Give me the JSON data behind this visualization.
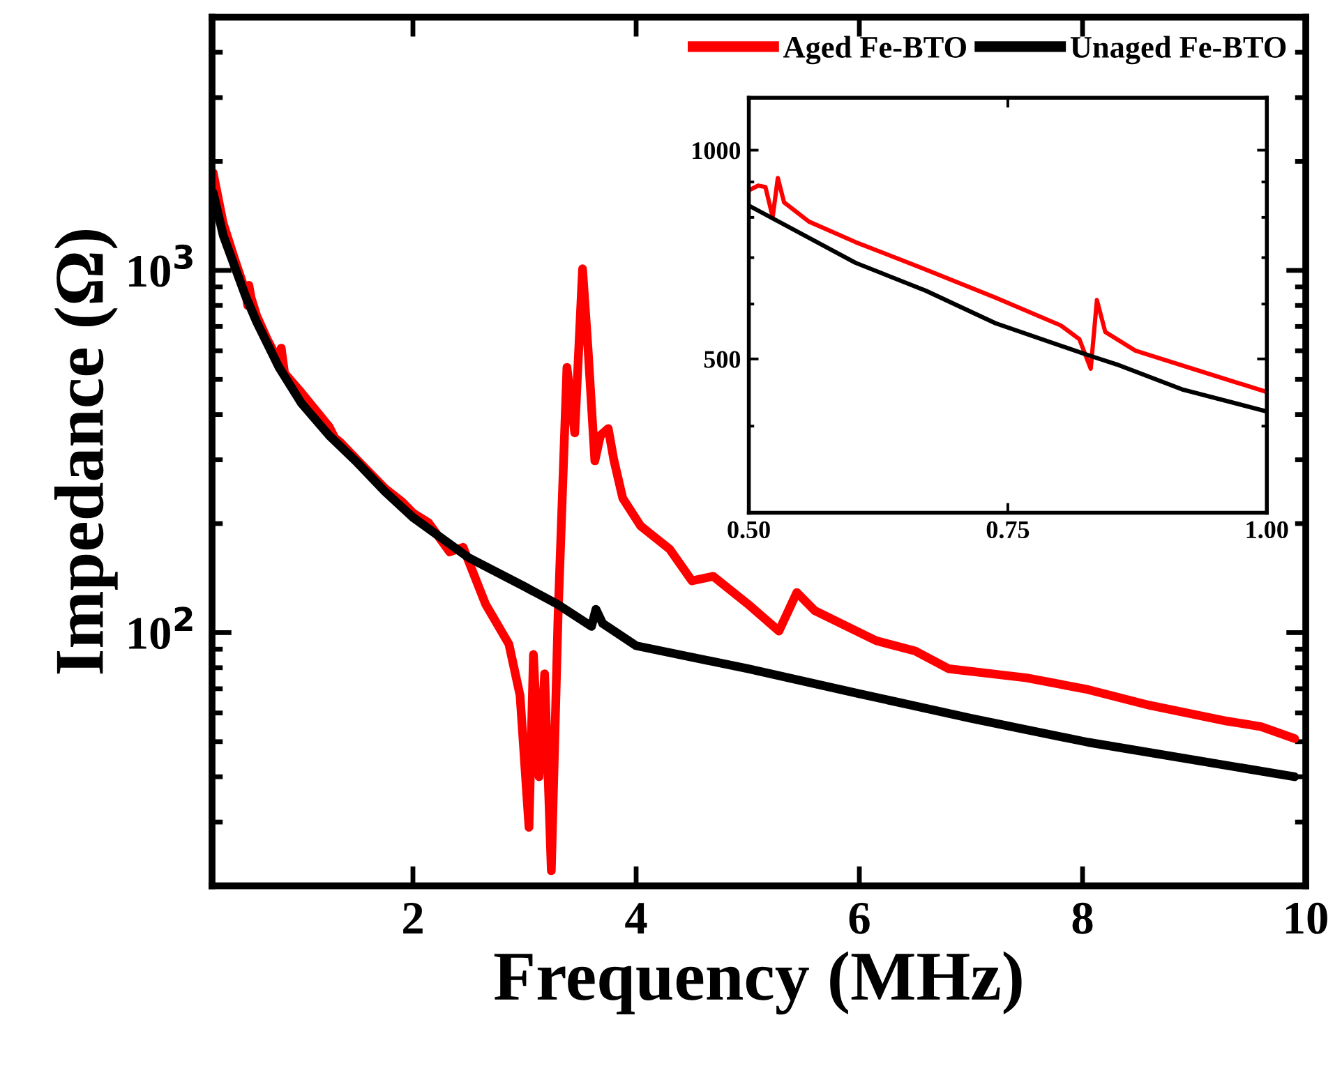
{
  "chart_data": [
    {
      "type": "line",
      "xlabel": "Frequency (MHz)",
      "ylabel": "Impedance (Ω)",
      "log": "y",
      "legend": "top right",
      "grid": false,
      "xlim": [
        0.2,
        10
      ],
      "xticks": [
        2,
        4,
        6,
        8,
        10
      ],
      "ylim": [
        20,
        5000
      ],
      "yticks": [
        {
          "value": 100,
          "label": "10$^{2}$"
        },
        {
          "value": 1000,
          "label": "10$^{3}$"
        }
      ],
      "series": [
        {
          "name": "Aged Fe-BTO",
          "color": "#ff0000",
          "x": [
            0.21,
            0.3,
            0.4,
            0.5,
            0.52,
            0.53,
            0.55,
            0.6,
            0.7,
            0.8,
            0.82,
            0.85,
            1.0,
            1.25,
            1.3,
            1.35,
            1.5,
            1.75,
            1.9,
            2.0,
            2.14,
            2.33,
            2.45,
            2.65,
            2.86,
            2.96,
            3.04,
            3.08,
            3.13,
            3.18,
            3.24,
            3.3,
            3.38,
            3.45,
            3.52,
            3.57,
            3.63,
            3.68,
            3.75,
            3.8,
            3.88,
            4.04,
            4.3,
            4.5,
            4.69,
            5.0,
            5.28,
            5.44,
            5.6,
            6.15,
            6.5,
            6.8,
            7.5,
            8.05,
            8.6,
            9.29,
            9.6,
            9.9
          ],
          "values": [
            1860,
            1350,
            1080,
            875,
            800,
            910,
            840,
            750,
            640,
            560,
            610,
            520,
            460,
            370,
            345,
            335,
            300,
            250,
            230,
            214,
            201,
            167,
            172,
            120,
            93,
            67,
            29,
            87,
            40,
            77,
            22,
            110,
            540,
            356,
            1010,
            600,
            298,
            350,
            366,
            300,
            235,
            197,
            170,
            139,
            143,
            120,
            101,
            129,
            115,
            95,
            89,
            79.5,
            75,
            69.6,
            63,
            57,
            55,
            51
          ]
        },
        {
          "name": "Unaged Fe-BTO",
          "color": "#000000",
          "x": [
            0.21,
            0.3,
            0.4,
            0.5,
            0.6,
            0.8,
            1.0,
            1.25,
            1.5,
            1.75,
            2.0,
            2.5,
            3.0,
            3.29,
            3.6,
            3.64,
            3.7,
            4.0,
            5.0,
            6.0,
            7.0,
            8.05,
            9.0,
            9.9
          ],
          "values": [
            1640,
            1250,
            1030,
            850,
            720,
            540,
            430,
            350,
            295,
            245,
            208,
            161,
            134,
            120,
            104,
            116,
            106,
            92,
            79.5,
            67.8,
            58,
            49.8,
            44.5,
            40
          ]
        }
      ]
    },
    {
      "type": "line",
      "log": "y",
      "grid": false,
      "xlim": [
        0.5,
        1.0
      ],
      "xticks": [
        {
          "value": 0.5,
          "label": "0.50"
        },
        0.75,
        {
          "value": 1.0,
          "label": "1.00"
        }
      ],
      "ylim": [
        300,
        1190
      ],
      "yticks": [
        500,
        1000
      ],
      "series": [
        {
          "color": "#ff0000",
          "x": [
            0.5,
            0.509,
            0.516,
            0.523,
            0.528,
            0.534,
            0.558,
            0.603,
            0.666,
            0.738,
            0.801,
            0.819,
            0.83,
            0.836,
            0.844,
            0.873,
            0.936,
            1.0
          ],
          "values": [
            875,
            889,
            885,
            801,
            912,
            841,
            789,
            737,
            677,
            613,
            559,
            534,
            484,
            608,
            547,
            514,
            480,
            448
          ]
        },
        {
          "color": "#000000",
          "x": [
            0.5,
            0.603,
            0.671,
            0.738,
            0.828,
            0.855,
            0.918,
            1.0
          ],
          "values": [
            832,
            688,
            627,
            563,
            506,
            491,
            452,
            420
          ]
        }
      ]
    }
  ]
}
